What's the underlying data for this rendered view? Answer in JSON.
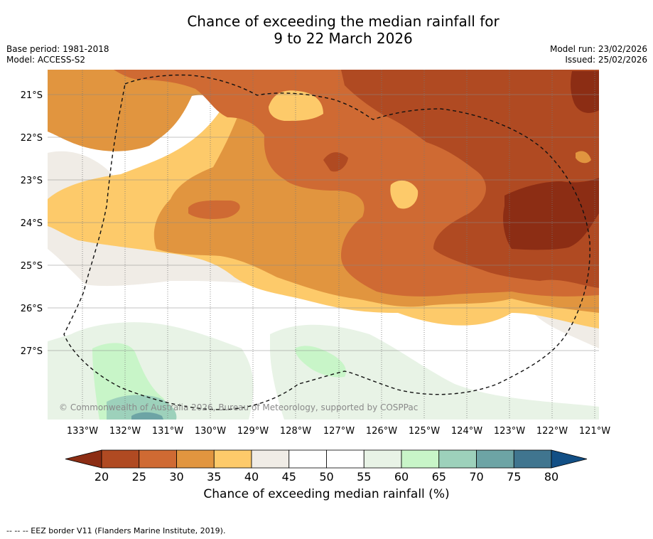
{
  "title_line1": "Chance of exceeding the median rainfall for",
  "title_line2": "9 to 22 March 2026",
  "base_period": "Base period: 1981-2018",
  "model": "Model: ACCESS-S2",
  "model_run": "Model run: 23/02/2026",
  "issued": "Issued: 25/02/2026",
  "copyright": "© Commonwealth of Australia 2026, Bureau of Meteorology, supported by COSPPac",
  "lat_labels": [
    "21°S",
    "22°S",
    "23°S",
    "24°S",
    "25°S",
    "26°S",
    "27°S"
  ],
  "lon_labels": [
    "133°W",
    "132°W",
    "131°W",
    "130°W",
    "129°W",
    "128°W",
    "127°W",
    "126°W",
    "125°W",
    "124°W",
    "123°W",
    "122°W",
    "121°W"
  ],
  "colorbar": {
    "ticks": [
      "20",
      "25",
      "30",
      "35",
      "40",
      "45",
      "50",
      "55",
      "60",
      "65",
      "70",
      "75",
      "80"
    ],
    "label": "Chance of exceeding median rainfall (%)",
    "colors": [
      "#8c2d14",
      "#b04a22",
      "#cf6a33",
      "#e1953f",
      "#fdca6a",
      "#f0ece6",
      "#ffffff",
      "#ffffff",
      "#e8f3e6",
      "#c8f5c8",
      "#9dd1bb",
      "#6da4a5",
      "#40758f",
      "#124f85"
    ]
  },
  "footer": "--  --  -- EEZ border V11 (Flanders Marine Institute, 2019)."
}
